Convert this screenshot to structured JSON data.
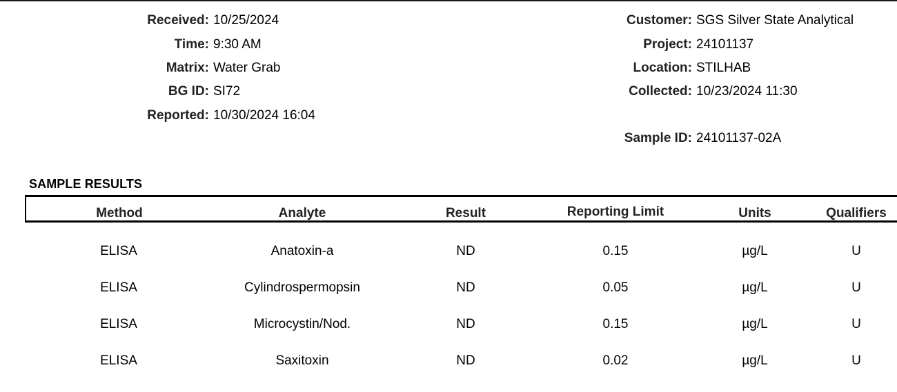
{
  "left_block": [
    {
      "label": "Received:",
      "value": "10/25/2024"
    },
    {
      "label": "Time:",
      "value": "9:30 AM"
    },
    {
      "label": "Matrix:",
      "value": "Water Grab"
    },
    {
      "label": "BG ID:",
      "value": "SI72"
    },
    {
      "label": "Reported:",
      "value": "10/30/2024 16:04"
    }
  ],
  "right_block": [
    {
      "label": "Customer:",
      "value": "SGS Silver State Analytical"
    },
    {
      "label": "Project:",
      "value": "24101137"
    },
    {
      "label": "Location:",
      "value": "STILHAB"
    },
    {
      "label": "Collected:",
      "value": "10/23/2024 11:30"
    }
  ],
  "sample_id": {
    "label": "Sample ID:",
    "value": "24101137-02A"
  },
  "section_title": "SAMPLE RESULTS",
  "table": {
    "headers": [
      "Method",
      "Analyte",
      "Result",
      "Reporting Limit",
      "Units",
      "Qualifiers"
    ],
    "rows": [
      [
        "ELISA",
        "Anatoxin-a",
        "ND",
        "0.15",
        "µg/L",
        "U"
      ],
      [
        "ELISA",
        "Cylindrospermopsin",
        "ND",
        "0.05",
        "µg/L",
        "U"
      ],
      [
        "ELISA",
        "Microcystin/Nod.",
        "ND",
        "0.15",
        "µg/L",
        "U"
      ],
      [
        "ELISA",
        "Saxitoxin",
        "ND",
        "0.02",
        "µg/L",
        "U"
      ]
    ]
  }
}
